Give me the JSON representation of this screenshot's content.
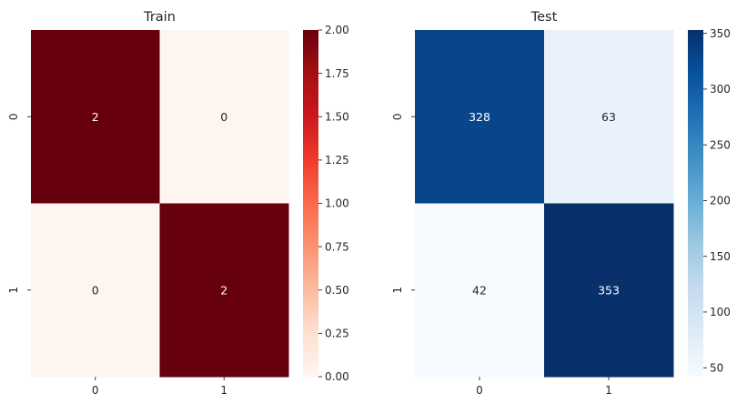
{
  "chart_data": [
    {
      "type": "heatmap",
      "title": "Train",
      "rows": [
        "0",
        "1"
      ],
      "cols": [
        "0",
        "1"
      ],
      "values": [
        [
          2,
          0
        ],
        [
          0,
          2
        ]
      ],
      "cell_labels": [
        [
          "2",
          "0"
        ],
        [
          "0",
          "2"
        ]
      ],
      "colormap": "Reds",
      "vmin": 0,
      "vmax": 2,
      "colorbar_ticks": [
        "0.00",
        "0.25",
        "0.50",
        "0.75",
        "1.00",
        "1.25",
        "1.50",
        "1.75",
        "2.00"
      ],
      "colorbar_tick_values": [
        0,
        0.25,
        0.5,
        0.75,
        1.0,
        1.25,
        1.5,
        1.75,
        2.0
      ],
      "colors": {
        "low": "#fff5f0",
        "high": "#67000d"
      }
    },
    {
      "type": "heatmap",
      "title": "Test",
      "rows": [
        "0",
        "1"
      ],
      "cols": [
        "0",
        "1"
      ],
      "values": [
        [
          328,
          63
        ],
        [
          42,
          353
        ]
      ],
      "cell_labels": [
        [
          "328",
          "63"
        ],
        [
          "42",
          "353"
        ]
      ],
      "colormap": "Blues",
      "vmin": 42,
      "vmax": 353,
      "colorbar_ticks": [
        "50",
        "100",
        "150",
        "200",
        "250",
        "300",
        "350"
      ],
      "colorbar_tick_values": [
        50,
        100,
        150,
        200,
        250,
        300,
        350
      ],
      "colors": {
        "low": "#f7fbff",
        "high": "#08306b"
      }
    }
  ]
}
